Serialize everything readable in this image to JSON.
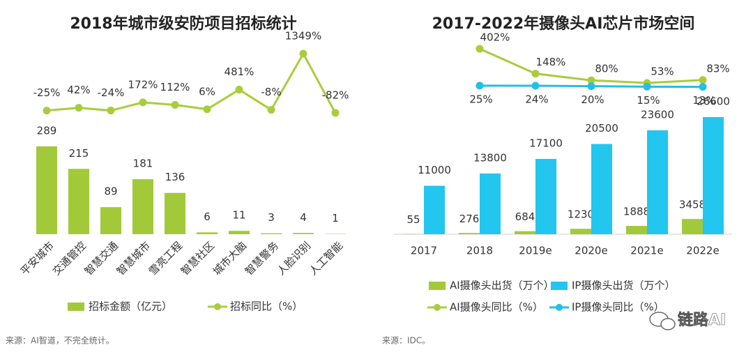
{
  "chart_data": [
    {
      "type": "combo",
      "title": "2018年城市级安防项目招标统计",
      "categories": [
        "平安城市",
        "交通管控",
        "智慧交通",
        "智慧城市",
        "雪亮工程",
        "智慧社区",
        "城市大脑",
        "智慧警务",
        "人脸识别",
        "人工智能"
      ],
      "series": [
        {
          "name": "招标金额（亿元）",
          "type": "bar",
          "color": "#a2c93a",
          "values": [
            289,
            215,
            89,
            181,
            136,
            6,
            11,
            3,
            4,
            1
          ]
        },
        {
          "name": "招标同比（%）",
          "type": "line",
          "color": "#a8cd3c",
          "values": [
            -25,
            42,
            -24,
            172,
            112,
            6,
            481,
            -8,
            1349,
            -82
          ],
          "value_labels": [
            "-25%",
            "42%",
            "-24%",
            "172%",
            "112%",
            "6%",
            "481%",
            "-8%",
            "1349%",
            "-82%"
          ]
        }
      ],
      "source": "来源：AI智道，不完全统计。"
    },
    {
      "type": "combo",
      "title": "2017-2022年摄像头AI芯片市场空间",
      "categories": [
        "2017",
        "2018",
        "2019e",
        "2020e",
        "2021e",
        "2022e"
      ],
      "series": [
        {
          "name": "AI摄像头出货（万个）",
          "type": "bar",
          "color": "#a2c93a",
          "values": [
            55,
            276,
            684,
            1230,
            1888,
            3458
          ]
        },
        {
          "name": "IP摄像头出货（万个）",
          "type": "bar",
          "color": "#22c6ee",
          "values": [
            11000,
            13800,
            17100,
            20500,
            23600,
            26600
          ]
        },
        {
          "name": "AI摄像头同比（%）",
          "type": "line",
          "color": "#a8cd3c",
          "values": [
            null,
            402,
            148,
            80,
            53,
            83
          ],
          "value_labels": [
            null,
            "402%",
            "148%",
            "80%",
            "53%",
            "83%"
          ]
        },
        {
          "name": "IP摄像头同比（%）",
          "type": "line",
          "color": "#22bfe6",
          "values": [
            null,
            25,
            24,
            20,
            15,
            13
          ],
          "value_labels": [
            null,
            "25%",
            "24%",
            "20%",
            "15%",
            "13%"
          ]
        }
      ],
      "source": "来源：IDC。"
    }
  ],
  "watermark": "链路AI"
}
